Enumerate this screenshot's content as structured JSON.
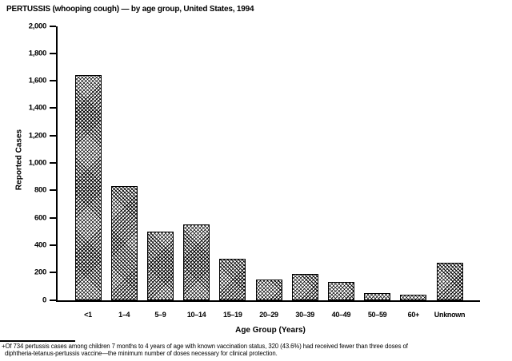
{
  "title": "PERTUSSIS (whooping cough) — by age group, United States, 1994",
  "chart_data": {
    "type": "bar",
    "title": "PERTUSSIS (whooping cough) — by age group, United States, 1994",
    "categories": [
      "<1",
      "1–4",
      "5–9",
      "10–14",
      "15–19",
      "20–29",
      "30–39",
      "40–49",
      "50–59",
      "60+",
      "Unknown"
    ],
    "values": [
      1640,
      830,
      500,
      550,
      300,
      150,
      190,
      130,
      50,
      40,
      270
    ],
    "xlabel": "Age Group (Years)",
    "ylabel": "Reported Cases",
    "ylim": [
      0,
      2000
    ],
    "y_tick_step": 200,
    "y_tick_labels": [
      "0",
      "200",
      "400",
      "600",
      "800",
      "1,000",
      "1,200",
      "1,400",
      "1,600",
      "1,800",
      "2,000"
    ],
    "grid": false,
    "legend": "none",
    "bar_fill": "black crosshatch pattern on white",
    "bar_border_color": "#000000",
    "text_color": "#000000",
    "background_color": "#ffffff"
  },
  "footnote": {
    "lines": [
      "+Of 734 pertussis cases among children 7 months to 4 years of age with known vaccination status, 320 (43.6%) had received fewer than three doses of",
      "diphtheria-tetanus-pertussis vaccine—the minimum number of doses necessary for clinical protection."
    ]
  }
}
